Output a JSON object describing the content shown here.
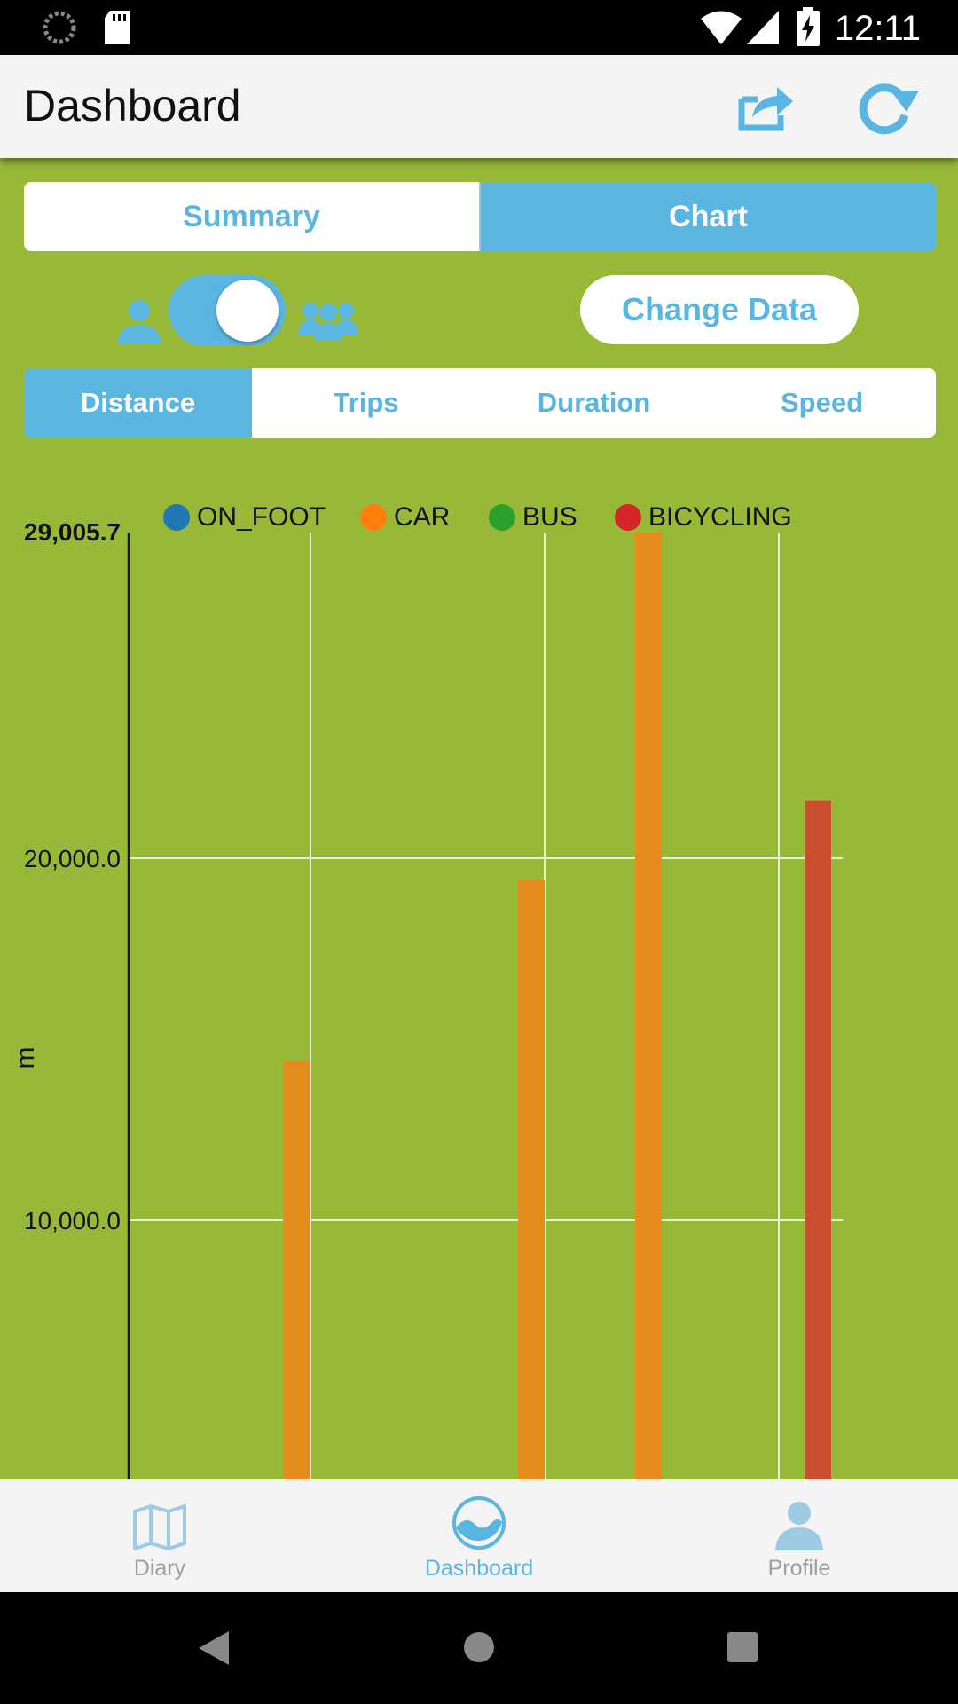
{
  "status_bar": {
    "time": "12:11"
  },
  "header": {
    "title": "Dashboard",
    "share_icon": "share-icon",
    "refresh_icon": "refresh-icon"
  },
  "view_tabs": [
    {
      "label": "Summary",
      "active": false
    },
    {
      "label": "Chart",
      "active": true
    }
  ],
  "toggle": {
    "left_icon": "person-icon",
    "right_icon": "group-icon",
    "state": "group"
  },
  "change_data": {
    "label": "Change Data"
  },
  "metric_tabs": [
    {
      "label": "Distance",
      "active": true
    },
    {
      "label": "Trips",
      "active": false
    },
    {
      "label": "Duration",
      "active": false
    },
    {
      "label": "Speed",
      "active": false
    }
  ],
  "chart_data": {
    "type": "bar",
    "ylabel": "m",
    "ymax_label": "29,005.7",
    "ylim": [
      0,
      29005.7
    ],
    "yticks": [
      {
        "value": 20000,
        "label": "20,000.0"
      },
      {
        "value": 10000,
        "label": "10,000.0"
      }
    ],
    "legend": [
      {
        "name": "ON_FOOT",
        "color": "#1f77b4"
      },
      {
        "name": "CAR",
        "color": "#ff7f0e"
      },
      {
        "name": "BUS",
        "color": "#2ca02c"
      },
      {
        "name": "BICYCLING",
        "color": "#d62728"
      }
    ],
    "bars": [
      {
        "group": 1,
        "series": "CAR",
        "value": 14400,
        "color": "#e58c1c"
      },
      {
        "group": 2,
        "series": "CAR",
        "value": 19400,
        "color": "#e58c1c"
      },
      {
        "group": 3,
        "series": "CAR",
        "value": 29005.7,
        "color": "#e58c1c"
      },
      {
        "group": 4,
        "series": "BICYCLING",
        "value": 21600,
        "color": "#c94f30"
      }
    ]
  },
  "bottom_nav": [
    {
      "label": "Diary",
      "icon": "map-icon",
      "active": false
    },
    {
      "label": "Dashboard",
      "icon": "dashboard-icon",
      "active": true
    },
    {
      "label": "Profile",
      "icon": "person-icon",
      "active": false
    }
  ]
}
